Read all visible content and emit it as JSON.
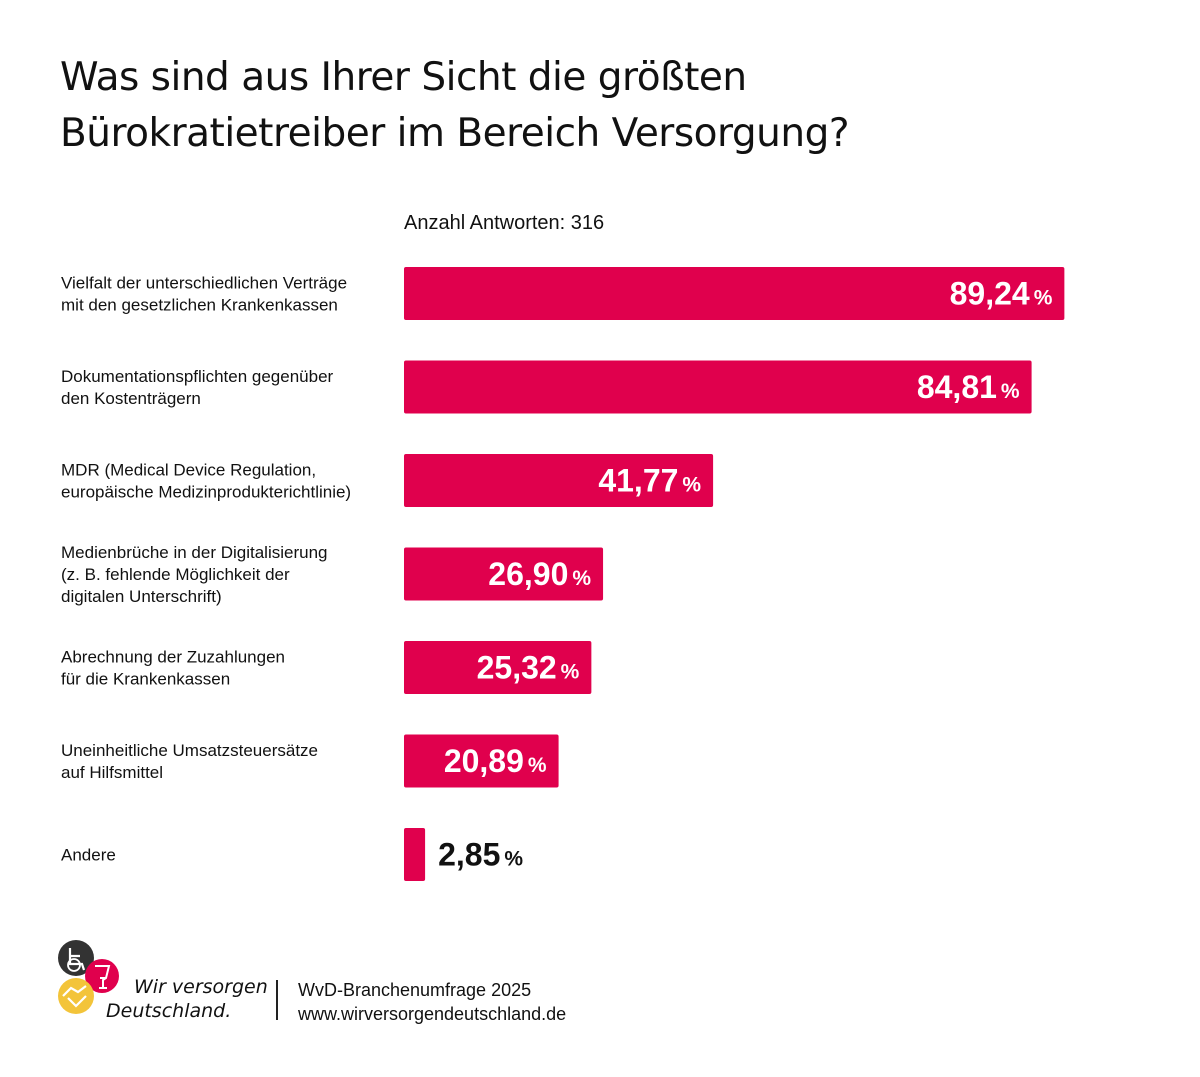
{
  "title_lines": [
    "Was sind aus Ihrer Sicht die größten",
    "Bürokratietreiber im Bereich Versorgung?"
  ],
  "subtitle": "Anzahl Antworten: 316",
  "colors": {
    "bar": "#e0004d",
    "bar_label": "#ffffff",
    "outside_label": "#111111"
  },
  "chart_data": {
    "type": "bar",
    "orientation": "horizontal",
    "unit": "%",
    "xlim": [
      0,
      100
    ],
    "grid": false,
    "legend": "none",
    "categories": [
      [
        "Vielfalt der unterschiedlichen Verträge",
        "mit den gesetzlichen Krankenkassen"
      ],
      [
        "Dokumentationspflichten gegenüber",
        "den Kostenträgern"
      ],
      [
        "MDR (Medical Device Regulation,",
        "europäische Medizinprodukterichtlinie)"
      ],
      [
        "Medienbrüche in der Digitalisierung",
        "(z. B. fehlende Möglichkeit der",
        "digitalen Unterschrift)"
      ],
      [
        "Abrechnung der Zuzahlungen",
        "für die Krankenkassen"
      ],
      [
        "Uneinheitliche Umsatzsteuersätze",
        "auf Hilfsmittel"
      ],
      [
        "Andere"
      ]
    ],
    "values": [
      89.24,
      84.81,
      41.77,
      26.9,
      25.32,
      20.89,
      2.85
    ],
    "value_labels": [
      "89,24",
      "84,81",
      "41,77",
      "26,90",
      "25,32",
      "20,89",
      "2,85"
    ]
  },
  "logo": {
    "line1": "Wir versorgen",
    "line2": "Deutschland.",
    "icon_colors": [
      "#333333",
      "#e0004d",
      "#f3c43a"
    ],
    "icon_names": [
      "wheelchair-icon",
      "glass-icon",
      "handshake-icon"
    ]
  },
  "footer": {
    "survey": "WvD-Branchenumfrage 2025",
    "url": "www.wirversorgendeutschland.de"
  }
}
